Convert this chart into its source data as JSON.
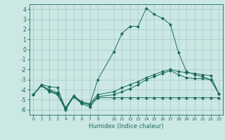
{
  "title": "",
  "xlabel": "Humidex (Indice chaleur)",
  "background_color": "#cce8e4",
  "grid_color": "#aacccc",
  "line_color": "#1a6b5e",
  "xlim": [
    -0.5,
    23.5
  ],
  "ylim": [
    -6.5,
    4.5
  ],
  "xticks": [
    0,
    1,
    2,
    3,
    4,
    5,
    6,
    7,
    8,
    10,
    11,
    12,
    13,
    14,
    15,
    16,
    17,
    18,
    19,
    20,
    21,
    22,
    23
  ],
  "xtick_labels": [
    "0",
    "1",
    "2",
    "3",
    "4",
    "5",
    "6",
    "7",
    "8",
    "10",
    "11",
    "12",
    "13",
    "14",
    "15",
    "16",
    "17",
    "18",
    "19",
    "20",
    "21",
    "22",
    "23"
  ],
  "yticks": [
    -6,
    -5,
    -4,
    -3,
    -2,
    -1,
    0,
    1,
    2,
    3,
    4
  ],
  "curves": [
    {
      "x": [
        0,
        1,
        2,
        3,
        4,
        5,
        6,
        7,
        8,
        10,
        11,
        12,
        13,
        14,
        15,
        16,
        17,
        18,
        19,
        20,
        21,
        22,
        23
      ],
      "y": [
        -4.5,
        -3.5,
        -3.7,
        -3.8,
        -5.9,
        -4.7,
        -5.3,
        -5.5,
        -3.0,
        -0.2,
        1.6,
        2.3,
        2.3,
        4.1,
        3.5,
        3.1,
        2.5,
        -0.3,
        -2.2,
        -2.5,
        -2.7,
        -3.0,
        -4.4
      ],
      "marker": "D",
      "markersize": 2
    },
    {
      "x": [
        0,
        1,
        2,
        3,
        4,
        5,
        6,
        7,
        8,
        10,
        11,
        12,
        13,
        14,
        15,
        16,
        17,
        18,
        19,
        20,
        21,
        22,
        23
      ],
      "y": [
        -4.5,
        -3.6,
        -4.2,
        -4.5,
        -6.0,
        -4.7,
        -5.4,
        -5.7,
        -4.8,
        -4.8,
        -4.8,
        -4.8,
        -4.8,
        -4.8,
        -4.8,
        -4.8,
        -4.8,
        -4.8,
        -4.8,
        -4.8,
        -4.8,
        -4.8,
        -4.8
      ],
      "marker": "D",
      "markersize": 2
    },
    {
      "x": [
        0,
        1,
        2,
        3,
        4,
        5,
        6,
        7,
        8,
        10,
        11,
        12,
        13,
        14,
        15,
        16,
        17,
        18,
        19,
        20,
        21,
        22,
        23
      ],
      "y": [
        -4.5,
        -3.6,
        -4.0,
        -4.3,
        -5.8,
        -4.6,
        -5.2,
        -5.4,
        -4.5,
        -4.2,
        -3.8,
        -3.5,
        -3.2,
        -2.8,
        -2.5,
        -2.2,
        -2.0,
        -2.2,
        -2.3,
        -2.4,
        -2.5,
        -2.6,
        -4.4
      ],
      "marker": "D",
      "markersize": 2
    },
    {
      "x": [
        0,
        1,
        2,
        3,
        4,
        5,
        6,
        7,
        8,
        10,
        11,
        12,
        13,
        14,
        15,
        16,
        17,
        18,
        19,
        20,
        21,
        22,
        23
      ],
      "y": [
        -4.5,
        -3.6,
        -4.1,
        -4.4,
        -5.9,
        -4.6,
        -5.3,
        -5.5,
        -4.7,
        -4.5,
        -4.2,
        -3.9,
        -3.5,
        -3.0,
        -2.7,
        -2.4,
        -2.1,
        -2.5,
        -2.8,
        -2.9,
        -2.9,
        -3.0,
        -4.4
      ],
      "marker": "D",
      "markersize": 2
    }
  ]
}
